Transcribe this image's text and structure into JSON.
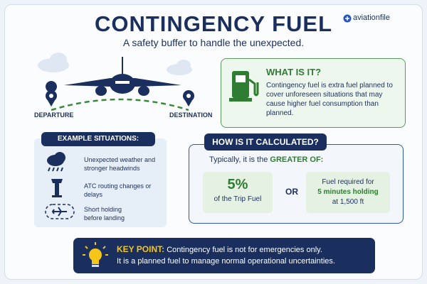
{
  "header": {
    "title": "CONTINGENCY FUEL",
    "subtitle": "A safety buffer to handle the unexpected.",
    "brand": "aviationfile"
  },
  "route": {
    "departure": "DEPARTURE",
    "destination": "DESTINATION"
  },
  "what_is_it": {
    "title": "WHAT IS IT?",
    "text": "Contingency fuel is extra fuel planned to cover unforeseen situations that may cause higher fuel consumption than planned."
  },
  "examples": {
    "title": "EXAMPLE SITUATIONS:",
    "items": [
      "Unexpected weather and stronger headwinds",
      "ATC routing changes or delays",
      "Short holding before landing"
    ]
  },
  "calculation": {
    "title": "HOW IS IT CALCULATED?",
    "intro": "Typically, it is the",
    "emphasis": "GREATER OF:",
    "option_a": {
      "value": "5%",
      "label": "of the Trip Fuel"
    },
    "or": "OR",
    "option_b": {
      "line1": "Fuel required for",
      "emphasis": "5 minutes holding",
      "line3": "at 1,500 ft"
    }
  },
  "key_point": {
    "label": "KEY POINT:",
    "line1": "Contingency fuel is not for emergencies only.",
    "line2": "It is a planned fuel to manage normal operational uncertainties."
  }
}
